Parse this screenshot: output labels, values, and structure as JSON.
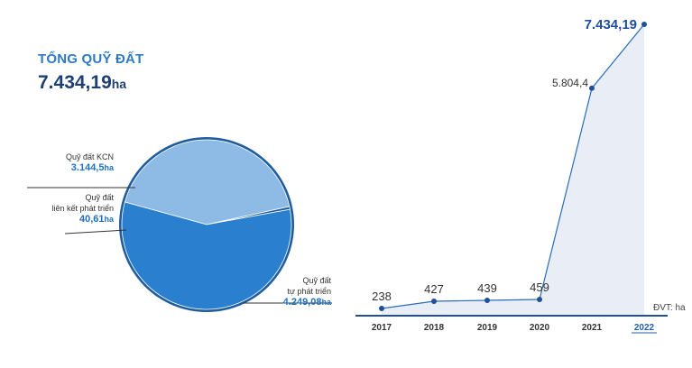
{
  "header": {
    "title": "TỔNG QUỸ ĐẤT",
    "total_value": "7.434,19",
    "total_unit": "ha"
  },
  "chart_data": [
    {
      "type": "pie",
      "slices": [
        {
          "name_lines": [
            "Quỹ đất KCN"
          ],
          "value": 3144.5,
          "value_text": "3.144,5",
          "unit": "ha",
          "color": "#8dbbe6"
        },
        {
          "name_lines": [
            "Quỹ đất",
            "liên kết phát triển"
          ],
          "value": 40.61,
          "value_text": "40,61",
          "unit": "ha",
          "color": "#1f5d9e"
        },
        {
          "name_lines": [
            "Quỹ đất",
            "tự phát triển"
          ],
          "value": 4249.08,
          "value_text": "4.249,08",
          "unit": "ha",
          "color": "#2a80cf"
        }
      ]
    },
    {
      "type": "area",
      "x": [
        "2017",
        "2018",
        "2019",
        "2020",
        "2021",
        "2022"
      ],
      "values": [
        238,
        427,
        439,
        459,
        5804.4,
        7434.19
      ],
      "value_labels": [
        "238",
        "427",
        "439",
        "459",
        "5.804,4",
        "7.434,19"
      ],
      "unit_note": "ĐVT: ha",
      "colors": {
        "line": "#2a6db8",
        "fill": "#e9eef6",
        "dot": "#1f4f9a"
      }
    }
  ]
}
